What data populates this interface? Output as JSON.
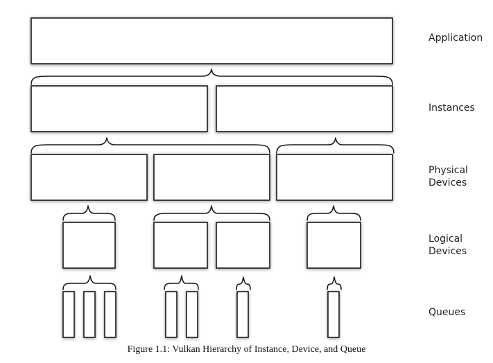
{
  "labels": {
    "application": "Application",
    "instances": "Instances",
    "physical_devices": "Physical\nDevices",
    "logical_devices": "Logical\nDevices",
    "queues": "Queues"
  },
  "caption": "Figure 1.1: Vulkan Hierarchy of Instance, Device, and Queue"
}
